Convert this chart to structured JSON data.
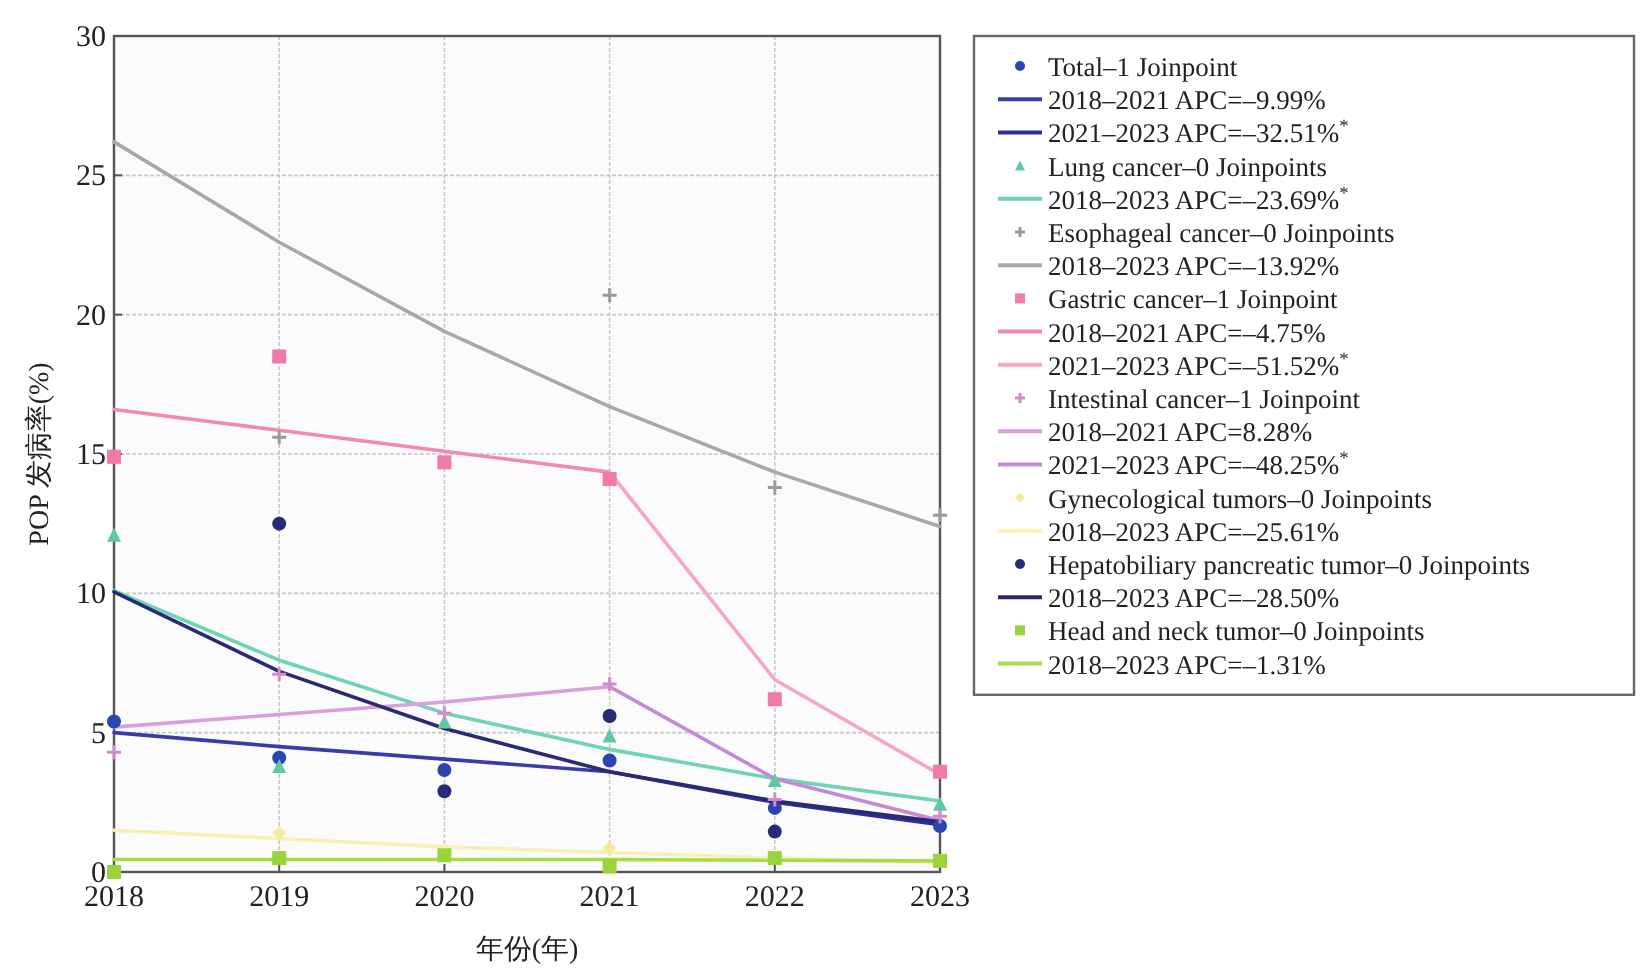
{
  "chart_data": {
    "type": "scatter",
    "xlabel": "年份(年)",
    "ylabel": "POP 发病率(%)",
    "x": [
      2018,
      2019,
      2020,
      2021,
      2022,
      2023
    ],
    "xlim": [
      2018,
      2023
    ],
    "ylim": [
      0,
      30
    ],
    "xticks": [
      2018,
      2019,
      2020,
      2021,
      2022,
      2023
    ],
    "yticks": [
      0,
      5,
      10,
      15,
      20,
      25,
      30
    ],
    "grid": true,
    "legend": "right",
    "series": [
      {
        "name": "Total–1 Joinpoint",
        "type": "scatter",
        "marker": "circle",
        "color": "#2b45b0",
        "values": [
          5.4,
          4.1,
          3.66,
          4.0,
          2.3,
          1.65
        ]
      },
      {
        "name": "2018–2021 APC=–9.99%",
        "type": "line",
        "color": "#3b3ba6",
        "x": [
          2018,
          2019,
          2020,
          2021
        ],
        "values": [
          5.0,
          4.5,
          4.05,
          3.6
        ]
      },
      {
        "name": "2021–2023 APC=–32.51%$^{*}$",
        "type": "line",
        "color": "#2e2e98",
        "x": [
          2021,
          2022,
          2023
        ],
        "values": [
          3.6,
          2.5,
          1.7
        ]
      },
      {
        "name": "Lung cancer–0 Joinpoints",
        "type": "scatter",
        "marker": "triangle",
        "color": "#5cc9a2",
        "values": [
          12.1,
          3.8,
          5.4,
          4.9,
          3.3,
          2.45
        ]
      },
      {
        "name": "2018–2023 APC=–23.69%$^{*}$",
        "type": "line",
        "color": "#6fd3b4",
        "x": [
          2018,
          2019,
          2020,
          2021,
          2022,
          2023
        ],
        "values": [
          10.1,
          7.6,
          5.7,
          4.4,
          3.35,
          2.55
        ]
      },
      {
        "name": "Esophageal cancer–0 Joinpoints",
        "type": "scatter",
        "marker": "cross",
        "color": "#9a9aa0",
        "values": [
          null,
          15.6,
          null,
          20.7,
          13.8,
          12.8
        ]
      },
      {
        "name": "2018–2023 APC=–13.92%",
        "type": "line",
        "color": "#a8a8a8",
        "x": [
          2018,
          2019,
          2020,
          2021,
          2022,
          2023
        ],
        "values": [
          26.2,
          22.6,
          19.4,
          16.7,
          14.35,
          12.4
        ]
      },
      {
        "name": "Gastric cancer–1 Joinpoint",
        "type": "scatter",
        "marker": "square",
        "color": "#f07aa8",
        "values": [
          14.9,
          18.5,
          14.7,
          14.1,
          6.2,
          3.6
        ]
      },
      {
        "name": "2018–2021 APC=–4.75%",
        "type": "line",
        "color": "#f08ab0",
        "x": [
          2018,
          2019,
          2020,
          2021
        ],
        "values": [
          16.6,
          15.85,
          15.1,
          14.35
        ]
      },
      {
        "name": "2021–2023 APC=–51.52%$^{*}$",
        "type": "line",
        "color": "#f4a6c6",
        "x": [
          2021,
          2022,
          2023
        ],
        "values": [
          14.35,
          6.9,
          3.5
        ]
      },
      {
        "name": "Intestinal cancer–1 Joinpoint",
        "type": "scatter",
        "marker": "cross",
        "color": "#d38ac8",
        "values": [
          4.3,
          7.1,
          5.7,
          6.75,
          2.6,
          2.0
        ]
      },
      {
        "name": "2018–2021 APC=8.28%",
        "type": "line",
        "color": "#d9a0d8",
        "x": [
          2018,
          2019,
          2020,
          2021
        ],
        "values": [
          5.2,
          5.65,
          6.1,
          6.65
        ]
      },
      {
        "name": "2021–2023 APC=–48.25%$^{*}$",
        "type": "line",
        "color": "#c48ad4",
        "x": [
          2021,
          2022,
          2023
        ],
        "values": [
          6.65,
          3.35,
          1.85
        ]
      },
      {
        "name": "Gynecological tumors–0 Joinpoints",
        "type": "scatter",
        "marker": "diamond",
        "color": "#f3eca0",
        "values": [
          null,
          1.4,
          null,
          0.85,
          null,
          null
        ]
      },
      {
        "name": "2018–2023 APC=–25.61%",
        "type": "line",
        "color": "#f7f1b4",
        "x": [
          2018,
          2019,
          2020,
          2021,
          2022,
          2023
        ],
        "values": [
          1.5,
          1.2,
          0.9,
          0.7,
          0.5,
          0.35
        ]
      },
      {
        "name": "Hepatobiliary pancreatic tumor–0 Joinpoints",
        "type": "scatter",
        "marker": "circle",
        "color": "#262a78",
        "values": [
          null,
          12.5,
          2.9,
          5.6,
          1.45,
          null
        ]
      },
      {
        "name": "2018–2023 APC=–28.50%",
        "type": "line",
        "color": "#2a2a72",
        "x": [
          2018,
          2019,
          2020,
          2021,
          2022,
          2023
        ],
        "values": [
          10.05,
          7.2,
          5.15,
          3.6,
          2.55,
          1.8
        ]
      },
      {
        "name": "Head and neck tumor–0 Joinpoints",
        "type": "scatter",
        "marker": "square",
        "color": "#98d43a",
        "values": [
          0,
          0.5,
          0.6,
          0.2,
          0.5,
          0.4
        ]
      },
      {
        "name": "2018–2023 APC=–1.31%",
        "type": "line",
        "color": "#a6dc48",
        "x": [
          2018,
          2019,
          2020,
          2021,
          2022,
          2023
        ],
        "values": [
          0.45,
          0.45,
          0.45,
          0.45,
          0.42,
          0.4
        ]
      }
    ]
  }
}
